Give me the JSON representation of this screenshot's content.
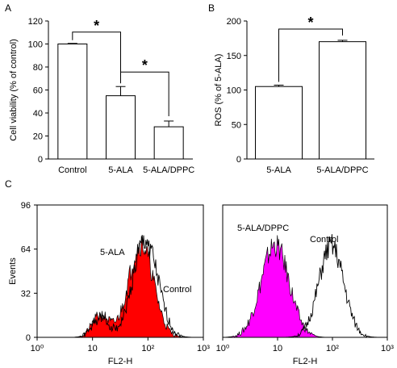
{
  "panels": {
    "A": {
      "letter": "A",
      "chart_data": {
        "type": "bar",
        "categories": [
          "Control",
          "5-ALA",
          "5-ALA/DPPC"
        ],
        "values": [
          100,
          55,
          28
        ],
        "errors": [
          0.5,
          8,
          5
        ],
        "ylabel": "Cell viability (% of control)",
        "ylim": [
          0,
          120
        ],
        "yticks": [
          0,
          20,
          40,
          60,
          80,
          100,
          120
        ],
        "significance": [
          {
            "from": 0,
            "to": 1,
            "label": "*"
          },
          {
            "from": 1,
            "to": 2,
            "label": "*"
          }
        ]
      }
    },
    "B": {
      "letter": "B",
      "chart_data": {
        "type": "bar",
        "categories": [
          "5-ALA",
          "5-ALA/DPPC"
        ],
        "values": [
          105,
          170
        ],
        "errors": [
          2,
          2
        ],
        "ylabel": "ROS (% of 5-ALA)",
        "ylim": [
          0,
          200
        ],
        "yticks": [
          0,
          50,
          100,
          150,
          200
        ],
        "significance": [
          {
            "from": 0,
            "to": 1,
            "label": "*"
          }
        ]
      }
    },
    "C": {
      "letter": "C",
      "chart_data": [
        {
          "type": "area",
          "ylabel": "Events",
          "xlabel": "FL2-H",
          "ylim": [
            0,
            96
          ],
          "yticks": [
            0,
            32,
            64,
            96
          ],
          "xlim": [
            1,
            1000
          ],
          "xscale": "log",
          "xticks": [
            "10⁰",
            "10",
            "10²",
            "10³"
          ],
          "series": [
            {
              "name": "5-ALA",
              "fill": "#ff0000",
              "peak_x": 75,
              "peak_count": 68,
              "minor_peak_x": 14,
              "minor_peak_count": 16
            },
            {
              "name": "Control",
              "fill": "none",
              "peak_x": 90,
              "peak_count": 70,
              "minor_peak_x": 14,
              "minor_peak_count": 14
            }
          ]
        },
        {
          "type": "area",
          "xlabel": "FL2-H",
          "ylim": [
            0,
            96
          ],
          "xlim": [
            1,
            1000
          ],
          "xscale": "log",
          "xticks": [
            "10⁰",
            "10",
            "10²",
            "10³"
          ],
          "series": [
            {
              "name": "5-ALA/DPPC",
              "fill": "#ff00ff",
              "peak_x": 9,
              "peak_count": 67
            },
            {
              "name": "Control",
              "fill": "none",
              "peak_x": 95,
              "peak_count": 66
            }
          ]
        }
      ]
    }
  },
  "colors": {
    "label_red": "#ff0000",
    "label_magenta": "#ff00ff"
  }
}
